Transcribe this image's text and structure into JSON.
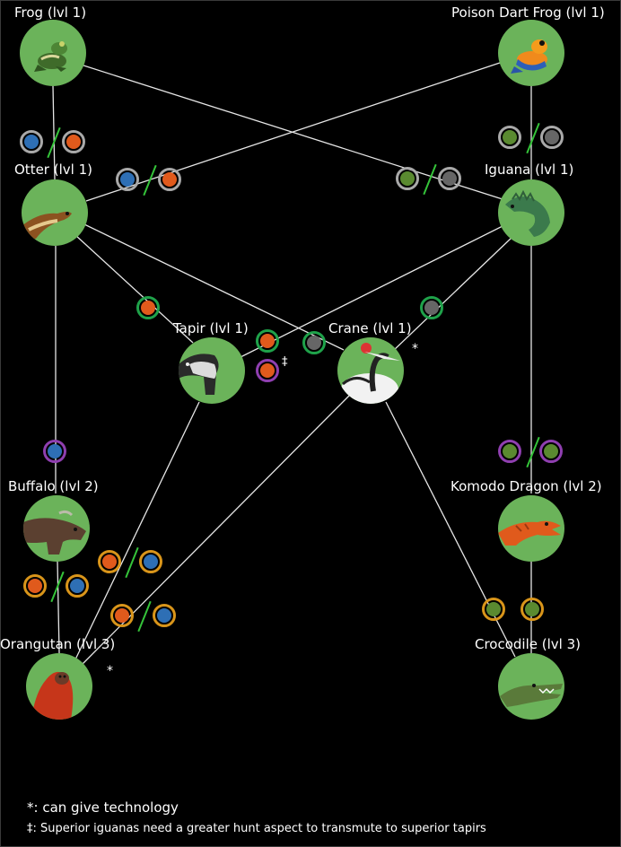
{
  "animals": {
    "frog": {
      "label": "Frog (lvl 1)",
      "icon": "frog-icon"
    },
    "poison_dart_frog": {
      "label": "Poison Dart Frog (lvl 1)",
      "icon": "poison-dart-frog-icon"
    },
    "otter": {
      "label": "Otter (lvl 1)",
      "icon": "otter-icon"
    },
    "iguana": {
      "label": "Iguana (lvl 1)",
      "icon": "iguana-icon"
    },
    "tapir": {
      "label": "Tapir (lvl 1)",
      "icon": "tapir-icon"
    },
    "crane": {
      "label": "Crane (lvl 1)",
      "icon": "crane-icon"
    },
    "buffalo": {
      "label": "Buffalo (lvl  2)",
      "icon": "buffalo-icon"
    },
    "komodo_dragon": {
      "label": "Komodo Dragon (lvl  2)",
      "icon": "komodo-dragon-icon"
    },
    "orangutan": {
      "label": "Orangutan (lvl  3)",
      "icon": "orangutan-icon"
    },
    "crocodile": {
      "label": "Crocodile (lvl  3)",
      "icon": "crocodile-icon"
    }
  },
  "marks": {
    "crane_star": "*",
    "orangutan_star": "*",
    "tapir_dagger": "‡"
  },
  "legend": {
    "line1": "*: can give technology",
    "line2": "‡: Superior iguanas need a greater hunt aspect to transmute to superior tapirs"
  },
  "colors": {
    "node_fill": "#6bb35a",
    "edge": "#e6e6e6",
    "ring_silver": "#a9a9a9",
    "ring_green": "#1fa24a",
    "ring_purple": "#8f3fb0",
    "ring_gold": "#d9951a",
    "slash": "#35c43a"
  }
}
